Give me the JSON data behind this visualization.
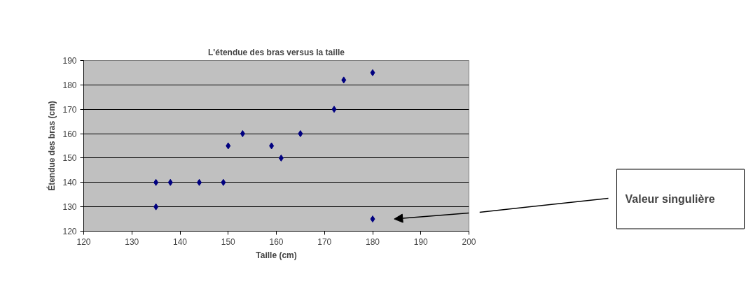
{
  "chart_data": {
    "type": "scatter",
    "title": "L'étendue des bras versus la taille",
    "xlabel": "Taille (cm)",
    "ylabel": "Étendue des bras (cm)",
    "x": [
      135,
      135,
      138,
      144,
      149,
      150,
      153,
      159,
      161,
      165,
      172,
      174,
      180,
      180
    ],
    "values": [
      140,
      130,
      140,
      140,
      140,
      155,
      160,
      155,
      150,
      160,
      170,
      182,
      185,
      125
    ],
    "color": "#000080",
    "marker": "diamond",
    "grid": "y",
    "legend": false,
    "xlim": [
      120,
      200
    ],
    "xticks": [
      120,
      130,
      140,
      150,
      160,
      170,
      180,
      190,
      200
    ],
    "ylim": [
      120,
      190
    ],
    "yticks": [
      120,
      130,
      140,
      150,
      160,
      170,
      180,
      190
    ],
    "annotations": [
      "Valeur singulière"
    ]
  }
}
